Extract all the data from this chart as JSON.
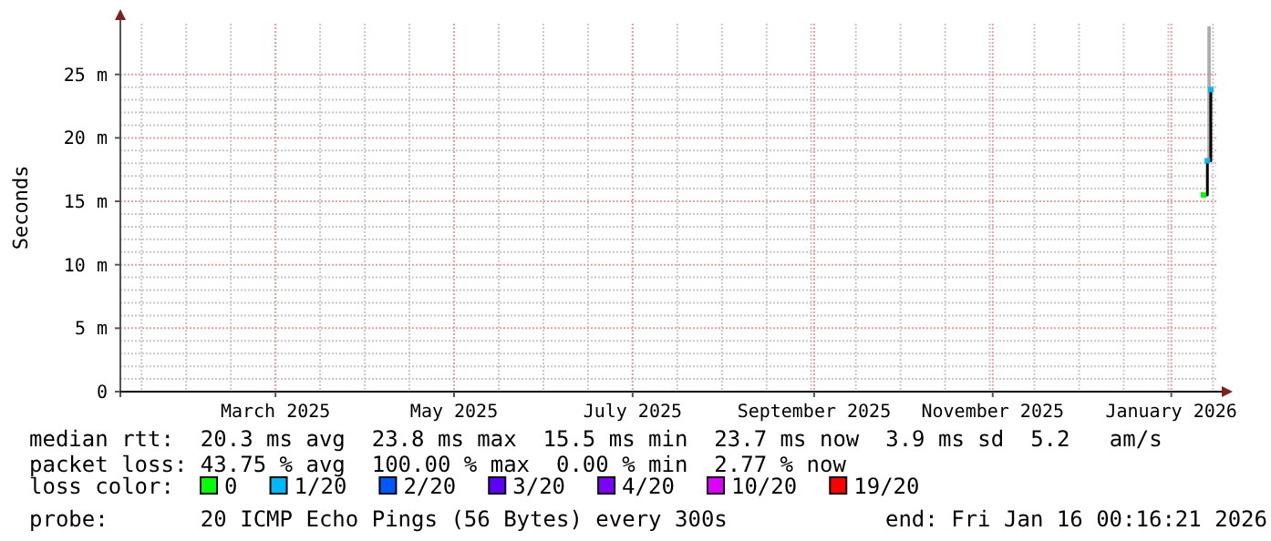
{
  "chart_data": {
    "type": "step",
    "ylabel": "Seconds",
    "xlim": [
      "2025-01-07",
      "2026-01-17"
    ],
    "xticks": [
      {
        "value": "2025-03-01",
        "label": "March 2025"
      },
      {
        "value": "2025-05-01",
        "label": "May 2025"
      },
      {
        "value": "2025-07-01",
        "label": "July 2025"
      },
      {
        "value": "2025-09-01",
        "label": "September 2025"
      },
      {
        "value": "2025-11-01",
        "label": "November 2025"
      },
      {
        "value": "2026-01-01",
        "label": "January 2026"
      }
    ],
    "ylim": [
      0,
      29
    ],
    "yticks": [
      0,
      {
        "value": 5,
        "label": "5 m"
      },
      {
        "value": 10,
        "label": "10 m"
      },
      {
        "value": 15,
        "label": "15 m"
      },
      {
        "value": 20,
        "label": "20 m"
      },
      {
        "value": 25,
        "label": "25 m"
      }
    ],
    "grid": true,
    "marker": "square",
    "series": [
      {
        "color": "#000000",
        "x": [
          "2026-01-12",
          "2026-01-13T08:00",
          "2026-01-14T12:00"
        ],
        "values": [
          15.5,
          18.2,
          23.8
        ],
        "lower": [
          15.5,
          18.2,
          23.8
        ],
        "upper": [
          15.5,
          28.8,
          28.8
        ],
        "colors": [
          "#00ff00",
          "#00b8ff",
          "#00b8ff"
        ]
      }
    ],
    "annotations": [
      "median rtt:  20.3 ms avg  23.8 ms max  15.5 ms min  23.7 ms now  3.9 ms sd  5.2   am/s",
      "packet loss: 43.75 % avg  100.00 % max  0.00 % min  2.77 % now",
      "loss color:",
      "0",
      "1/20",
      "2/20",
      "3/20",
      "4/20",
      "10/20",
      "19/20",
      "probe:       20 ICMP Echo Pings (56 Bytes) every 300s",
      "end: Fri Jan 16 00:16:21 2026"
    ]
  }
}
